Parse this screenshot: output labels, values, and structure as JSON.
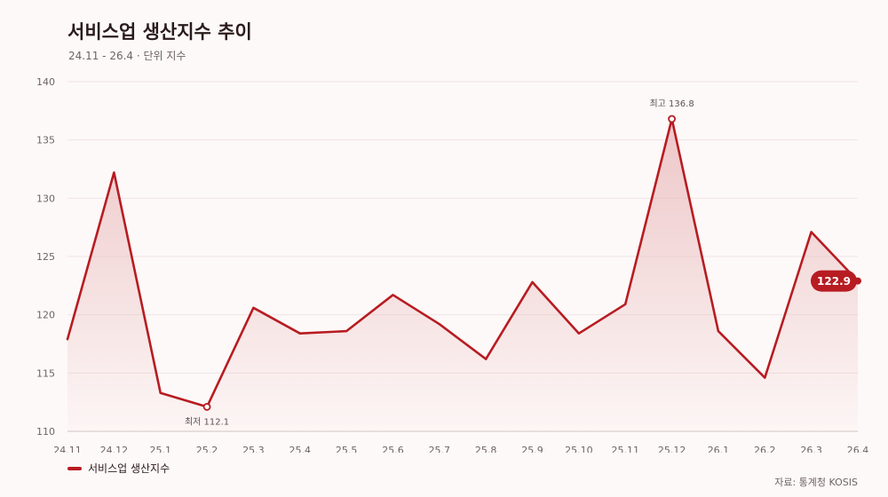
{
  "header": {
    "title": "서비스업 생산지수 추이",
    "subtitle": "24.11 - 26.4 · 단위 지수"
  },
  "footer": {
    "source": "자료: 통계청 KOSIS"
  },
  "legend": {
    "items": [
      "서비스업 생산지수"
    ]
  },
  "colors": {
    "line": "#b71c22",
    "area_top": "#e9b6b8",
    "background": "#fdf9f8"
  },
  "chart_data": {
    "type": "area",
    "x": [
      "24.11",
      "24.12",
      "25.1",
      "25.2",
      "25.3",
      "25.4",
      "25.5",
      "25.6",
      "25.7",
      "25.8",
      "25.9",
      "25.10",
      "25.11",
      "25.12",
      "26.1",
      "26.2",
      "26.3",
      "26.4"
    ],
    "series": [
      {
        "name": "서비스업 생산지수",
        "values": [
          117.9,
          132.2,
          113.3,
          112.1,
          120.6,
          118.4,
          118.6,
          121.7,
          119.2,
          116.2,
          122.8,
          118.4,
          120.9,
          136.8,
          118.6,
          114.6,
          127.1,
          122.9
        ]
      }
    ],
    "ylim": [
      110,
      140
    ],
    "yticks": [
      110,
      115,
      120,
      125,
      130,
      135,
      140
    ],
    "grid": true,
    "legend_position": "bottom-left",
    "annotations": {
      "max": {
        "label": "최고 136.8",
        "index": 13
      },
      "min": {
        "label": "최저 112.1",
        "index": 3
      },
      "last": {
        "label": "122.9",
        "index": 17
      }
    }
  }
}
